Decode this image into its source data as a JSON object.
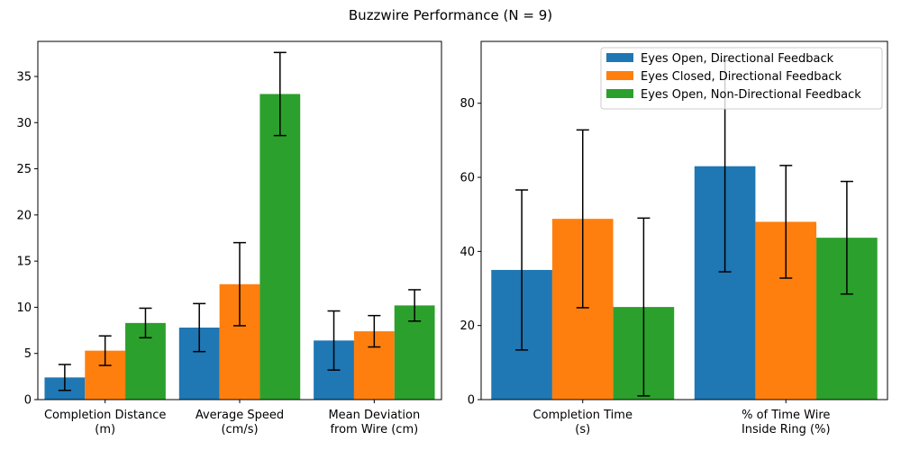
{
  "figure": {
    "title": "Buzzwire Performance (N = 9)"
  },
  "chart_data": [
    {
      "type": "bar",
      "title": "",
      "xlabel": "",
      "ylabel": "",
      "categories": [
        "Completion Distance\n(m)",
        "Average Speed\n(cm/s)",
        "Mean Deviation\nfrom Wire (cm)"
      ],
      "series": [
        {
          "name": "Eyes Open, Directional Feedback",
          "values": [
            2.4,
            7.8,
            6.4
          ],
          "errors": [
            1.4,
            2.6,
            3.2
          ],
          "color": "#1f77b4"
        },
        {
          "name": "Eyes Closed, Directional Feedback",
          "values": [
            5.3,
            12.5,
            7.4
          ],
          "errors": [
            1.6,
            4.5,
            1.7
          ],
          "color": "#ff7f0e"
        },
        {
          "name": "Eyes Open, Non-Directional Feedback",
          "values": [
            8.3,
            33.1,
            10.2
          ],
          "errors": [
            1.6,
            4.5,
            1.7
          ],
          "color": "#2ca02c"
        }
      ],
      "ylim": [
        0,
        38.8
      ],
      "yticks": [
        0,
        5,
        10,
        15,
        20,
        25,
        30,
        35
      ],
      "grid": false,
      "legend": false
    },
    {
      "type": "bar",
      "title": "",
      "xlabel": "",
      "ylabel": "",
      "categories": [
        "Completion Time\n(s)",
        "% of Time Wire\nInside Ring (%)"
      ],
      "series": [
        {
          "name": "Eyes Open, Directional Feedback",
          "values": [
            35.0,
            63.0
          ],
          "errors": [
            21.6,
            28.5
          ],
          "color": "#1f77b4"
        },
        {
          "name": "Eyes Closed, Directional Feedback",
          "values": [
            48.8,
            48.0
          ],
          "errors": [
            24.0,
            15.2
          ],
          "color": "#ff7f0e"
        },
        {
          "name": "Eyes Open, Non-Directional Feedback",
          "values": [
            25.0,
            43.7
          ],
          "errors": [
            24.0,
            15.2
          ],
          "color": "#2ca02c"
        }
      ],
      "ylim": [
        0,
        96.7
      ],
      "yticks": [
        0,
        20,
        40,
        60,
        80
      ],
      "grid": false,
      "legend": true,
      "legend_position": "top-right"
    }
  ]
}
